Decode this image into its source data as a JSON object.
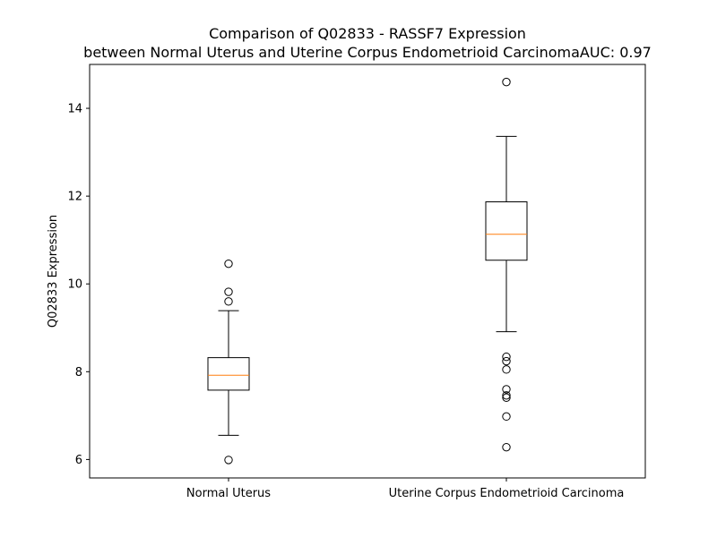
{
  "chart_data": {
    "type": "boxplot",
    "title_line1": "Comparison of Q02833 - RASSF7 Expression",
    "title_line2": "between Normal Uterus and Uterine Corpus Endometrioid CarcinomaAUC: 0.97",
    "ylabel": "Q02833 Expression",
    "xlabel": "",
    "ylim": [
      5.58,
      15.0
    ],
    "yticks": [
      6,
      8,
      10,
      12,
      14
    ],
    "grid": false,
    "colors": {
      "box": "#000000",
      "median": "#ff7f0e",
      "flier": "#000000"
    },
    "categories": [
      "Normal Uterus",
      "Uterine Corpus Endometrioid Carcinoma"
    ],
    "boxes": [
      {
        "category": "Normal Uterus",
        "whisker_low": 6.55,
        "q1": 7.58,
        "median": 7.92,
        "q3": 8.32,
        "whisker_high": 9.39,
        "outliers": [
          10.46,
          9.82,
          9.6,
          5.99
        ]
      },
      {
        "category": "Uterine Corpus Endometrioid Carcinoma",
        "whisker_low": 8.91,
        "q1": 10.54,
        "median": 11.13,
        "q3": 11.87,
        "whisker_high": 13.36,
        "outliers": [
          14.6,
          8.34,
          8.24,
          8.05,
          7.6,
          7.46,
          7.41,
          6.98,
          6.28
        ]
      }
    ]
  }
}
